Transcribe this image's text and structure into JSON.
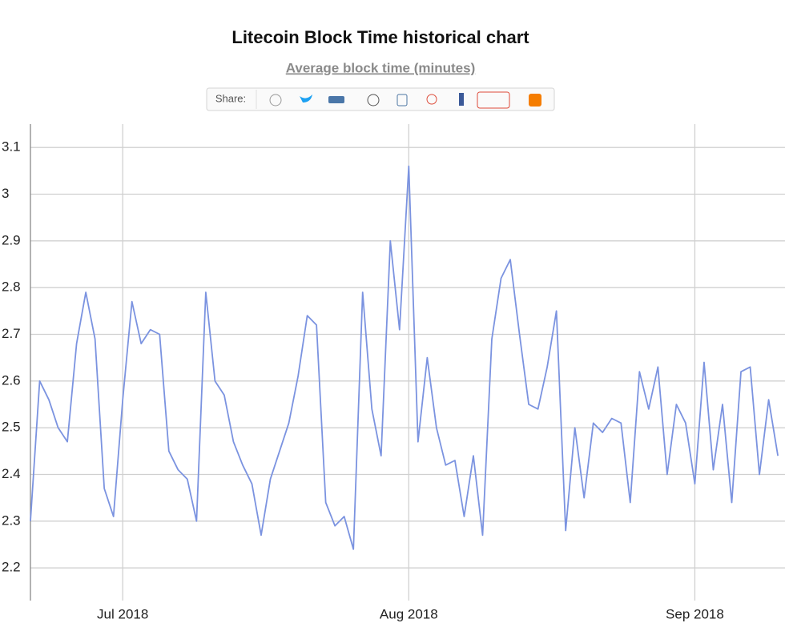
{
  "chart_data": {
    "type": "line",
    "title": "Litecoin Block Time historical chart",
    "subtitle": "Average block time (minutes)",
    "share_label": "Share:",
    "categories": [
      null,
      null,
      null,
      null,
      null,
      null,
      null,
      null,
      null,
      null,
      "Jul 2018",
      null,
      null,
      null,
      null,
      null,
      null,
      null,
      null,
      null,
      null,
      null,
      null,
      null,
      null,
      null,
      null,
      null,
      null,
      null,
      null,
      null,
      null,
      null,
      null,
      null,
      null,
      null,
      null,
      null,
      null,
      "Aug 2018",
      null,
      null,
      null,
      null,
      null,
      null,
      null,
      null,
      null,
      null,
      null,
      null,
      null,
      null,
      null,
      null,
      null,
      null,
      null,
      null,
      null,
      null,
      null,
      null,
      null,
      null,
      null,
      null,
      null,
      null,
      "Sep 2018",
      null,
      null,
      null,
      null,
      null,
      null,
      null,
      null,
      null
    ],
    "values": [
      2.3,
      2.6,
      2.56,
      2.5,
      2.47,
      2.68,
      2.79,
      2.69,
      2.37,
      2.31,
      2.56,
      2.77,
      2.68,
      2.71,
      2.7,
      2.45,
      2.41,
      2.39,
      2.3,
      2.79,
      2.6,
      2.57,
      2.47,
      2.42,
      2.38,
      2.27,
      2.39,
      2.45,
      2.51,
      2.61,
      2.74,
      2.72,
      2.34,
      2.29,
      2.31,
      2.24,
      2.79,
      2.54,
      2.44,
      2.9,
      2.71,
      3.06,
      2.47,
      2.65,
      2.5,
      2.42,
      2.43,
      2.31,
      2.44,
      2.27,
      2.69,
      2.82,
      2.86,
      2.7,
      2.55,
      2.54,
      2.63,
      2.75,
      2.28,
      2.5,
      2.35,
      2.51,
      2.49,
      2.52,
      2.51,
      2.34,
      2.62,
      2.54,
      2.63,
      2.4,
      2.55,
      2.51,
      2.38,
      2.64,
      2.41,
      2.55,
      2.34,
      2.62,
      2.63,
      2.4,
      2.56,
      2.44
    ],
    "color": "#7b93e0",
    "ylim": [
      2.13,
      3.15
    ],
    "yticks": [
      2.2,
      2.3,
      2.4,
      2.5,
      2.6,
      2.7,
      2.8,
      2.9,
      3,
      3.1
    ],
    "grid": true
  }
}
